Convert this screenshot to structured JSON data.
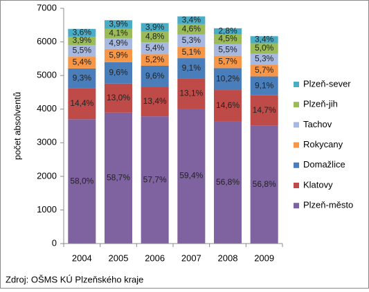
{
  "chart_data": {
    "type": "stacked-bar",
    "y_label": "počet absolventů",
    "source": "Zdroj: OŠMS KÚ Plzeňského kraje",
    "categories": [
      "2004",
      "2005",
      "2006",
      "2007",
      "2008",
      "2009"
    ],
    "ylim": [
      0,
      7000
    ],
    "yticks": [
      0,
      1000,
      2000,
      3000,
      4000,
      5000,
      6000,
      7000
    ],
    "series": [
      {
        "name": "Plzeň-město",
        "color": "#7f63a0",
        "values": [
          3700,
          3898,
          3785,
          4015,
          3635,
          3505
        ],
        "labels": [
          "58,0%",
          "58,7%",
          "57,7%",
          "59,4%",
          "56,8%",
          "56,8%"
        ]
      },
      {
        "name": "Klatovy",
        "color": "#be4b48",
        "values": [
          919,
          863,
          879,
          886,
          934,
          907
        ],
        "labels": [
          "14,4%",
          "13,0%",
          "13,4%",
          "13,1%",
          "14,6%",
          "14,7%"
        ]
      },
      {
        "name": "Domažlice",
        "color": "#4a7ebb",
        "values": [
          593,
          637,
          630,
          615,
          653,
          561
        ],
        "labels": [
          "9,3%",
          "9,6%",
          "9,6%",
          "9,1%",
          "10,2%",
          "9,1%"
        ]
      },
      {
        "name": "Rokycany",
        "color": "#f79646",
        "values": [
          345,
          392,
          341,
          345,
          365,
          352
        ],
        "labels": [
          "5,4%",
          "5,9%",
          "5,2%",
          "5,1%",
          "5,7%",
          "5,7%"
        ]
      },
      {
        "name": "Tachov",
        "color": "#a7b9e0",
        "values": [
          351,
          325,
          354,
          358,
          352,
          327
        ],
        "labels": [
          "5,5%",
          "4,9%",
          "5,4%",
          "5,3%",
          "5,5%",
          "5,3%"
        ]
      },
      {
        "name": "Plzeň-jih",
        "color": "#9bbb59",
        "values": [
          249,
          272,
          315,
          311,
          288,
          309
        ],
        "labels": [
          "3,9%",
          "4,1%",
          "4,8%",
          "4,6%",
          "4,5%",
          "5,0%"
        ]
      },
      {
        "name": "Plzeň-sever",
        "color": "#4bacc6",
        "values": [
          230,
          259,
          256,
          230,
          179,
          210
        ],
        "labels": [
          "3,6%",
          "3,9%",
          "3,9%",
          "3,4%",
          "2,8%",
          "3,4%"
        ]
      }
    ]
  }
}
